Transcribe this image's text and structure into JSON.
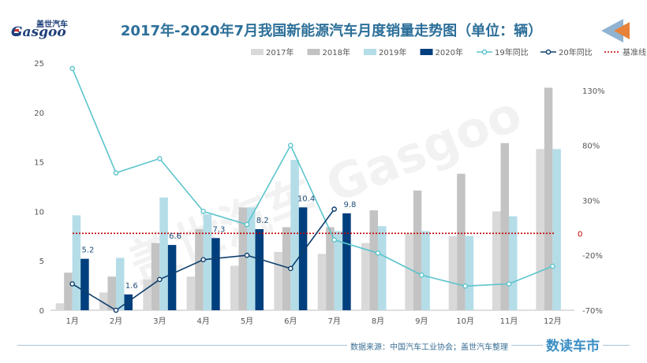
{
  "header": {
    "title": "2017年-2020年7月我国新能源汽车月度销量走势图（单位：辆）",
    "logo_name": "盖世汽车",
    "logo_word": "Gasgoo"
  },
  "footer": {
    "source": "数据来源：中国汽车工业协会；盖世汽车整理",
    "brand": "数读车市"
  },
  "watermark": "盖世汽车 Gasgoo",
  "chart_data": {
    "type": "bar",
    "categories": [
      "1月",
      "2月",
      "3月",
      "4月",
      "5月",
      "6月",
      "7月",
      "8月",
      "9月",
      "10月",
      "11月",
      "12月"
    ],
    "series": [
      {
        "name": "2017年",
        "values": [
          0.7,
          1.8,
          3.1,
          3.4,
          4.5,
          5.9,
          5.7,
          6.8,
          7.8,
          7.5,
          10.0,
          16.3
        ],
        "color": "#d9d9d9"
      },
      {
        "name": "2018年",
        "values": [
          3.8,
          3.4,
          6.8,
          8.2,
          10.4,
          8.4,
          8.4,
          10.1,
          12.1,
          13.8,
          16.9,
          22.5
        ],
        "color": "#c3c3c3"
      },
      {
        "name": "2019年",
        "values": [
          9.6,
          5.3,
          11.4,
          9.7,
          10.4,
          15.2,
          8.0,
          8.5,
          8.0,
          7.5,
          9.5,
          16.3
        ],
        "color": "#b4dde8"
      },
      {
        "name": "2020年",
        "values": [
          5.2,
          1.6,
          6.6,
          7.3,
          8.2,
          10.4,
          9.8,
          null,
          null,
          null,
          null,
          null
        ],
        "color": "#003f7d"
      }
    ],
    "data_labels_2020": [
      "5.2",
      "1.6",
      "6.6",
      "7.3",
      "8.2",
      "10.4",
      "9.8"
    ],
    "line_series": [
      {
        "name": "19年同比",
        "values": [
          150,
          55,
          68,
          20,
          8,
          80,
          -6,
          -18,
          -38,
          -48,
          -46,
          -30
        ],
        "color": "#5cc4cc"
      },
      {
        "name": "20年同比",
        "values": [
          -46,
          -70,
          -42,
          -24,
          -20,
          -32,
          22,
          null,
          null,
          null,
          null,
          null
        ],
        "color": "#0e3f6e"
      }
    ],
    "baseline": {
      "name": "基准线",
      "value": 0,
      "label": "0",
      "color": "#c00000"
    },
    "y_left": {
      "min": 0,
      "max": 25,
      "ticks": [
        "0",
        "5",
        "10",
        "15",
        "20",
        "25"
      ]
    },
    "y_right": {
      "min": -70,
      "max": 155,
      "ticks": [
        "-70%",
        "-20%",
        "30%",
        "80%",
        "130%"
      ],
      "tick_values": [
        -70,
        -20,
        30,
        80,
        130
      ]
    },
    "legend_position": "top-right",
    "grid": false
  }
}
